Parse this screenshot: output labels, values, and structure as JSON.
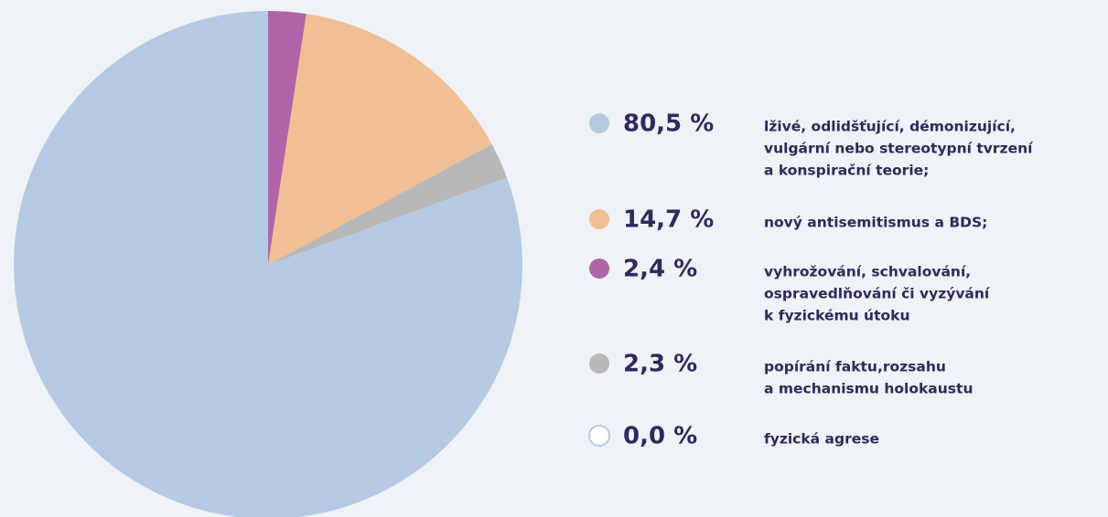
{
  "chart_data": {
    "type": "pie",
    "categories": [
      [
        "lživé, odlidšťující, démonizující,",
        "vulgární nebo stereotypní tvrzení",
        "a konspirační teorie;"
      ],
      [
        "nový antisemitismus a BDS;"
      ],
      [
        "vyhrožování, schvalování,",
        "ospravedlňování či vyzývání",
        "k fyzickému útoku"
      ],
      [
        "popírání faktu,rozsahu",
        "a mechanismu holokaustu"
      ],
      [
        "fyzická agrese"
      ]
    ],
    "values": [
      80.5,
      14.7,
      2.4,
      2.3,
      0.0
    ],
    "value_labels": [
      "80,5 %",
      "14,7 %",
      "2,4 %",
      "2,3 %",
      "0,0 %"
    ],
    "colors": [
      "#b5cae2",
      "#f2be93",
      "#b065a9",
      "#b8b8b8",
      "#ffffff"
    ]
  }
}
